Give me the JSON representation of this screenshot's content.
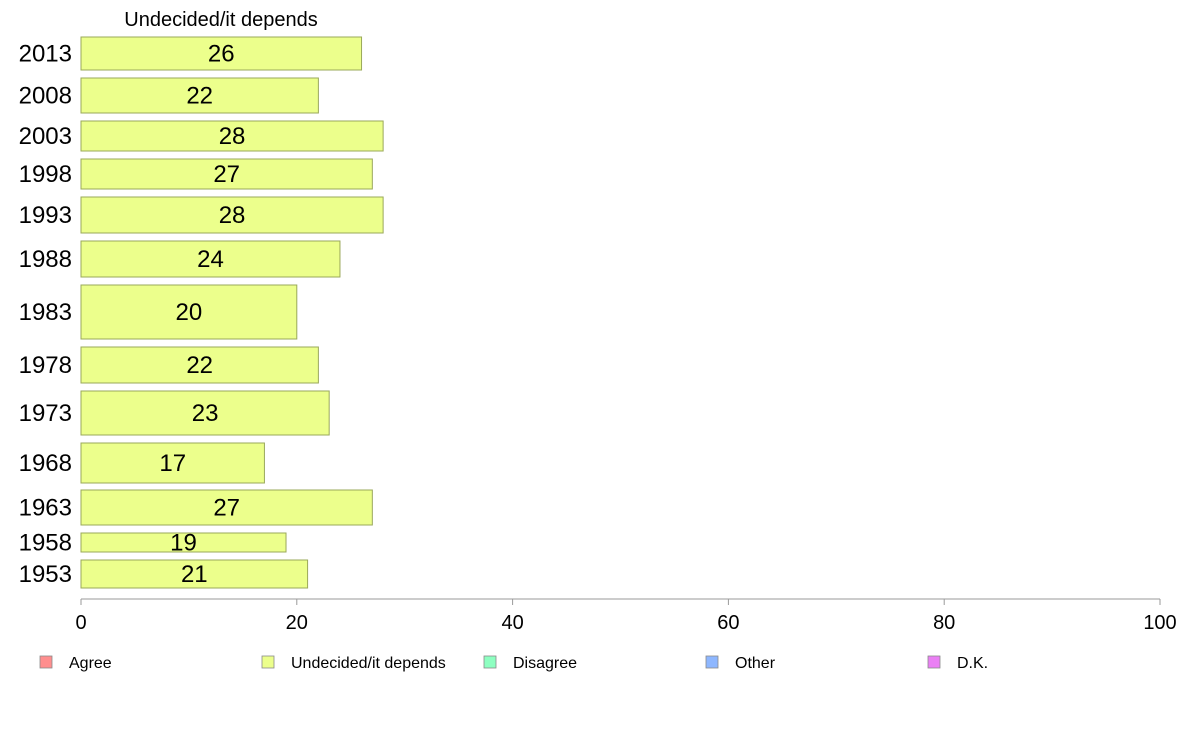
{
  "chart_data": {
    "type": "bar",
    "orientation": "horizontal",
    "panel_title": "Undecided/it depends",
    "categories": [
      "2013",
      "2008",
      "2003",
      "1998",
      "1993",
      "1988",
      "1983",
      "1978",
      "1973",
      "1968",
      "1963",
      "1958",
      "1953"
    ],
    "values": [
      26,
      22,
      28,
      27,
      28,
      24,
      20,
      22,
      23,
      17,
      27,
      19,
      21
    ],
    "xlim": [
      0,
      100
    ],
    "xticks": [
      0,
      20,
      40,
      60,
      80,
      100
    ],
    "grid": false,
    "bar_color": "#ecff8c",
    "bar_stroke": "#9aa85a",
    "legend_position": "bottom",
    "legend": [
      {
        "label": "Agree",
        "color": "#ff8e8e"
      },
      {
        "label": "Undecided/it depends",
        "color": "#ecff8c"
      },
      {
        "label": "Disagree",
        "color": "#8effc1"
      },
      {
        "label": "Other",
        "color": "#8eb7ff"
      },
      {
        "label": "D.K.",
        "color": "#ea7ff4"
      }
    ]
  }
}
